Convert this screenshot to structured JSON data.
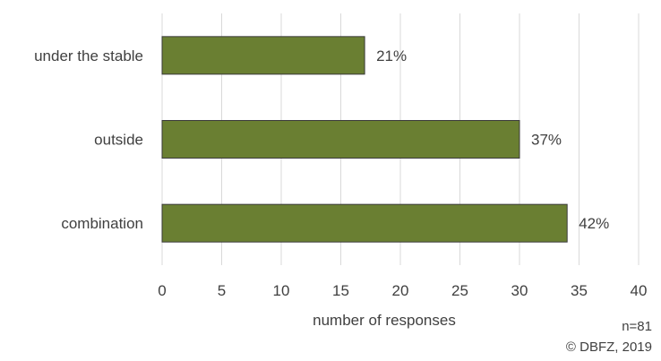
{
  "chart_data": {
    "type": "bar",
    "orientation": "horizontal",
    "categories": [
      "under the stable",
      "outside",
      "combination"
    ],
    "values": [
      17,
      30,
      34
    ],
    "data_labels": [
      "21%",
      "37%",
      "42%"
    ],
    "xlabel": "number of responses",
    "ylabel": "",
    "xlim": [
      0,
      40
    ],
    "xticks": [
      0,
      5,
      10,
      15,
      20,
      25,
      30,
      35,
      40
    ],
    "grid": "vertical",
    "bar_color": "#6a7f32",
    "bar_edge_color": "#3a3a3a",
    "grid_color": "#d9d9d9",
    "text_color": "#404040"
  },
  "notes": {
    "sample_size": "n=81",
    "copyright": "© DBFZ, 2019"
  }
}
